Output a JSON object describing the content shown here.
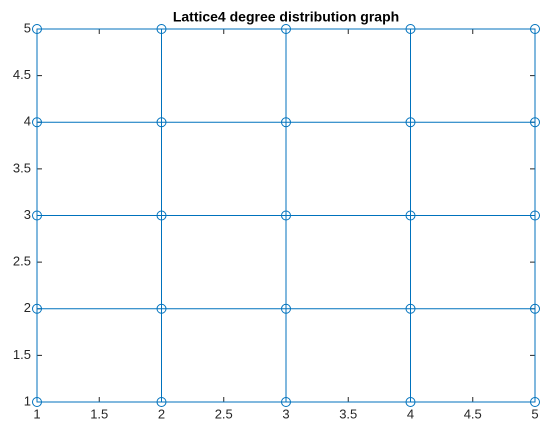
{
  "chart_data": {
    "type": "graph",
    "title": "Lattice4 degree distribution graph",
    "color": "#0072bd",
    "nodes": {
      "x": [
        1,
        2,
        3,
        4,
        5,
        1,
        2,
        3,
        4,
        5,
        1,
        2,
        3,
        4,
        5,
        1,
        2,
        3,
        4,
        5,
        1,
        2,
        3,
        4,
        5
      ],
      "y": [
        1,
        1,
        1,
        1,
        1,
        2,
        2,
        2,
        2,
        2,
        3,
        3,
        3,
        3,
        3,
        4,
        4,
        4,
        4,
        4,
        5,
        5,
        5,
        5,
        5
      ]
    },
    "edges": [
      [
        0,
        1
      ],
      [
        1,
        2
      ],
      [
        2,
        3
      ],
      [
        3,
        4
      ],
      [
        5,
        6
      ],
      [
        6,
        7
      ],
      [
        7,
        8
      ],
      [
        8,
        9
      ],
      [
        10,
        11
      ],
      [
        11,
        12
      ],
      [
        12,
        13
      ],
      [
        13,
        14
      ],
      [
        15,
        16
      ],
      [
        16,
        17
      ],
      [
        17,
        18
      ],
      [
        18,
        19
      ],
      [
        20,
        21
      ],
      [
        21,
        22
      ],
      [
        22,
        23
      ],
      [
        23,
        24
      ],
      [
        0,
        5
      ],
      [
        1,
        6
      ],
      [
        2,
        7
      ],
      [
        3,
        8
      ],
      [
        4,
        9
      ],
      [
        5,
        10
      ],
      [
        6,
        11
      ],
      [
        7,
        12
      ],
      [
        8,
        13
      ],
      [
        9,
        14
      ],
      [
        10,
        15
      ],
      [
        11,
        16
      ],
      [
        12,
        17
      ],
      [
        13,
        18
      ],
      [
        14,
        19
      ],
      [
        15,
        20
      ],
      [
        16,
        21
      ],
      [
        17,
        22
      ],
      [
        18,
        23
      ],
      [
        19,
        24
      ]
    ],
    "xlim": [
      1,
      5
    ],
    "ylim": [
      1,
      5
    ],
    "xticks": [
      1,
      1.5,
      2,
      2.5,
      3,
      3.5,
      4,
      4.5,
      5
    ],
    "yticks": [
      1,
      1.5,
      2,
      2.5,
      3,
      3.5,
      4,
      4.5,
      5
    ]
  }
}
